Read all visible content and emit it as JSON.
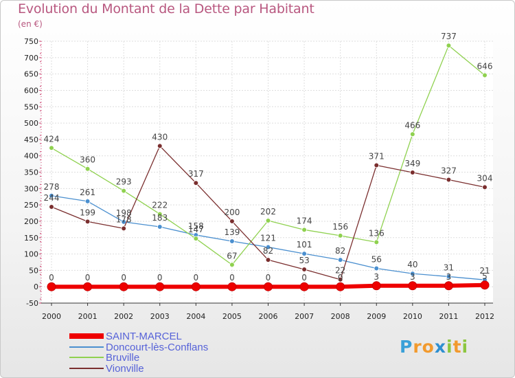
{
  "header": {
    "title": "Evolution du Montant de la Dette par Habitant",
    "unit": "(en €)"
  },
  "logo": {
    "letters": [
      "P",
      "r",
      "o",
      "x",
      "i",
      "t",
      "i"
    ],
    "colors": [
      "#3aa0d8",
      "#f29a2e",
      "#f29a2e",
      "#2e8fd0",
      "#8cc63f",
      "#f29a2e",
      "#8cc63f"
    ]
  },
  "chart_data": {
    "type": "line",
    "title": "Evolution du Montant de la Dette par Habitant",
    "ylabel": "(en €)",
    "xlabel": "",
    "x": [
      "2000",
      "2001",
      "2002",
      "2003",
      "2004",
      "2005",
      "2006",
      "2007",
      "2008",
      "2009",
      "2010",
      "2011",
      "2012"
    ],
    "ylim": [
      -50,
      750
    ],
    "yticks": [
      -50,
      0,
      50,
      100,
      150,
      200,
      250,
      300,
      350,
      400,
      450,
      500,
      550,
      600,
      650,
      700,
      750
    ],
    "grid": true,
    "legend_position": "bottom-left",
    "series": [
      {
        "name": "Doncourt-lès-Conflans",
        "color": "#4a8fcf",
        "values": [
          278,
          261,
          198,
          183,
          158,
          139,
          121,
          101,
          82,
          56,
          40,
          31,
          21
        ]
      },
      {
        "name": "Bruville",
        "color": "#8fd14f",
        "values": [
          424,
          360,
          293,
          222,
          147,
          67,
          202,
          174,
          156,
          136,
          466,
          737,
          646
        ]
      },
      {
        "name": "Vionville",
        "color": "#7a2e2e",
        "values": [
          244,
          199,
          178,
          430,
          317,
          200,
          82,
          53,
          22,
          371,
          349,
          327,
          304
        ]
      },
      {
        "name": "SAINT-MARCEL",
        "color": "#ee0000",
        "values": [
          0,
          0,
          0,
          0,
          0,
          0,
          0,
          0,
          0,
          3,
          3,
          3,
          5
        ]
      }
    ],
    "legend_order": [
      "SAINT-MARCEL",
      "Doncourt-lès-Conflans",
      "Bruville",
      "Vionville"
    ]
  }
}
